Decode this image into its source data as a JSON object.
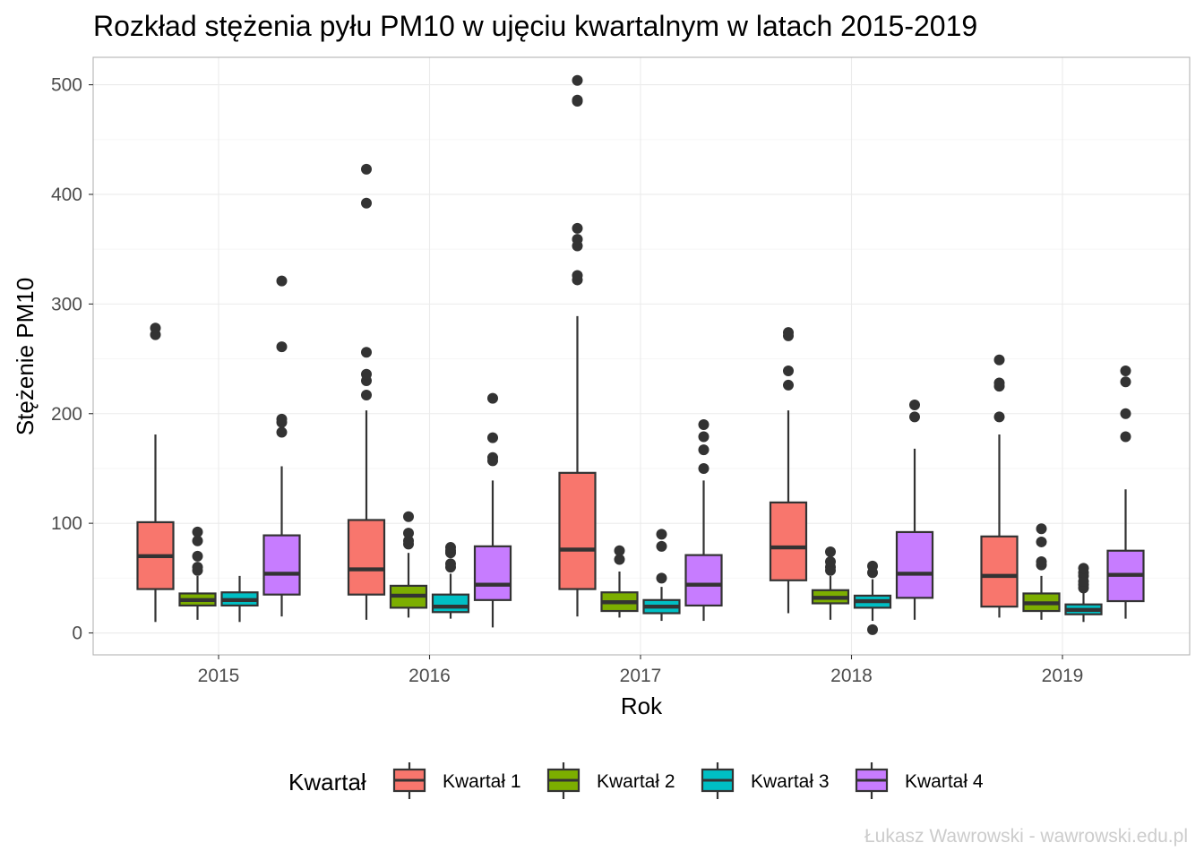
{
  "chart_data": {
    "type": "boxplot",
    "title": "Rozkład stężenia pyłu PM10 w ujęciu kwartalnym w latach 2015-2019",
    "xlabel": "Rok",
    "ylabel": "Stężenie PM10",
    "ylim": [
      -20,
      525
    ],
    "yticks": [
      0,
      100,
      200,
      300,
      400,
      500
    ],
    "categories": [
      "2015",
      "2016",
      "2017",
      "2018",
      "2019"
    ],
    "grid": true,
    "legend": {
      "title": "Kwartał",
      "position": "bottom"
    },
    "series": [
      {
        "name": "Kwartał 1",
        "color": "#F8766D",
        "boxes": [
          {
            "min": 10,
            "q1": 40,
            "median": 70,
            "q3": 101,
            "max": 181,
            "outliers": [
              272,
              278
            ]
          },
          {
            "min": 12,
            "q1": 35,
            "median": 58,
            "q3": 103,
            "max": 203,
            "outliers": [
              217,
              230,
              236,
              256,
              392,
              423
            ]
          },
          {
            "min": 15,
            "q1": 40,
            "median": 76,
            "q3": 146,
            "max": 289,
            "outliers": [
              322,
              326,
              353,
              359,
              369,
              485,
              486,
              504
            ]
          },
          {
            "min": 18,
            "q1": 48,
            "median": 78,
            "q3": 119,
            "max": 203,
            "outliers": [
              226,
              239,
              271,
              274
            ]
          },
          {
            "min": 14,
            "q1": 24,
            "median": 52,
            "q3": 88,
            "max": 181,
            "outliers": [
              197,
              225,
              228,
              249
            ]
          }
        ]
      },
      {
        "name": "Kwartał 2",
        "color": "#7CAE00",
        "boxes": [
          {
            "min": 12,
            "q1": 25,
            "median": 30,
            "q3": 36,
            "max": 52,
            "outliers": [
              57,
              60,
              70,
              84,
              92
            ]
          },
          {
            "min": 14,
            "q1": 23,
            "median": 34,
            "q3": 43,
            "max": 73,
            "outliers": [
              81,
              84,
              91,
              106
            ]
          },
          {
            "min": 14,
            "q1": 20,
            "median": 28,
            "q3": 37,
            "max": 56,
            "outliers": [
              67,
              75
            ]
          },
          {
            "min": 12,
            "q1": 27,
            "median": 32,
            "q3": 39,
            "max": 52,
            "outliers": [
              57,
              60,
              65,
              74
            ]
          },
          {
            "min": 12,
            "q1": 20,
            "median": 27,
            "q3": 36,
            "max": 52,
            "outliers": [
              62,
              65,
              83,
              95
            ]
          }
        ]
      },
      {
        "name": "Kwartał 3",
        "color": "#00BFC4",
        "boxes": [
          {
            "min": 10,
            "q1": 25,
            "median": 30,
            "q3": 37,
            "max": 52,
            "outliers": []
          },
          {
            "min": 13,
            "q1": 19,
            "median": 24,
            "q3": 35,
            "max": 54,
            "outliers": [
              60,
              63,
              73,
              75,
              78
            ]
          },
          {
            "min": 11,
            "q1": 18,
            "median": 24,
            "q3": 30,
            "max": 42,
            "outliers": [
              50,
              79,
              90
            ]
          },
          {
            "min": 11,
            "q1": 23,
            "median": 29,
            "q3": 34,
            "max": 49,
            "outliers": [
              3,
              55,
              61
            ]
          },
          {
            "min": 10,
            "q1": 17,
            "median": 21,
            "q3": 26,
            "max": 37,
            "outliers": [
              41,
              44,
              47,
              52,
              55,
              59
            ]
          }
        ]
      },
      {
        "name": "Kwartał 4",
        "color": "#C77CFF",
        "boxes": [
          {
            "min": 15,
            "q1": 35,
            "median": 54,
            "q3": 89,
            "max": 152,
            "outliers": [
              183,
              192,
              195,
              261,
              321
            ]
          },
          {
            "min": 5,
            "q1": 30,
            "median": 44,
            "q3": 79,
            "max": 139,
            "outliers": [
              157,
              160,
              178,
              214
            ]
          },
          {
            "min": 11,
            "q1": 25,
            "median": 44,
            "q3": 71,
            "max": 139,
            "outliers": [
              150,
              167,
              179,
              190
            ]
          },
          {
            "min": 12,
            "q1": 32,
            "median": 54,
            "q3": 92,
            "max": 168,
            "outliers": [
              197,
              208
            ]
          },
          {
            "min": 13,
            "q1": 29,
            "median": 53,
            "q3": 75,
            "max": 131,
            "outliers": [
              179,
              200,
              229,
              239
            ]
          }
        ]
      }
    ]
  },
  "caption": "Łukasz Wawrowski - wawrowski.edu.pl",
  "colors": {
    "box_line": "#333333",
    "grid_major": "#EBEBEB",
    "grid_minor": "#F5F5F5",
    "panel_border": "#B3B3B3",
    "tick_text": "#4D4D4D",
    "caption": "#CCCCCC"
  }
}
